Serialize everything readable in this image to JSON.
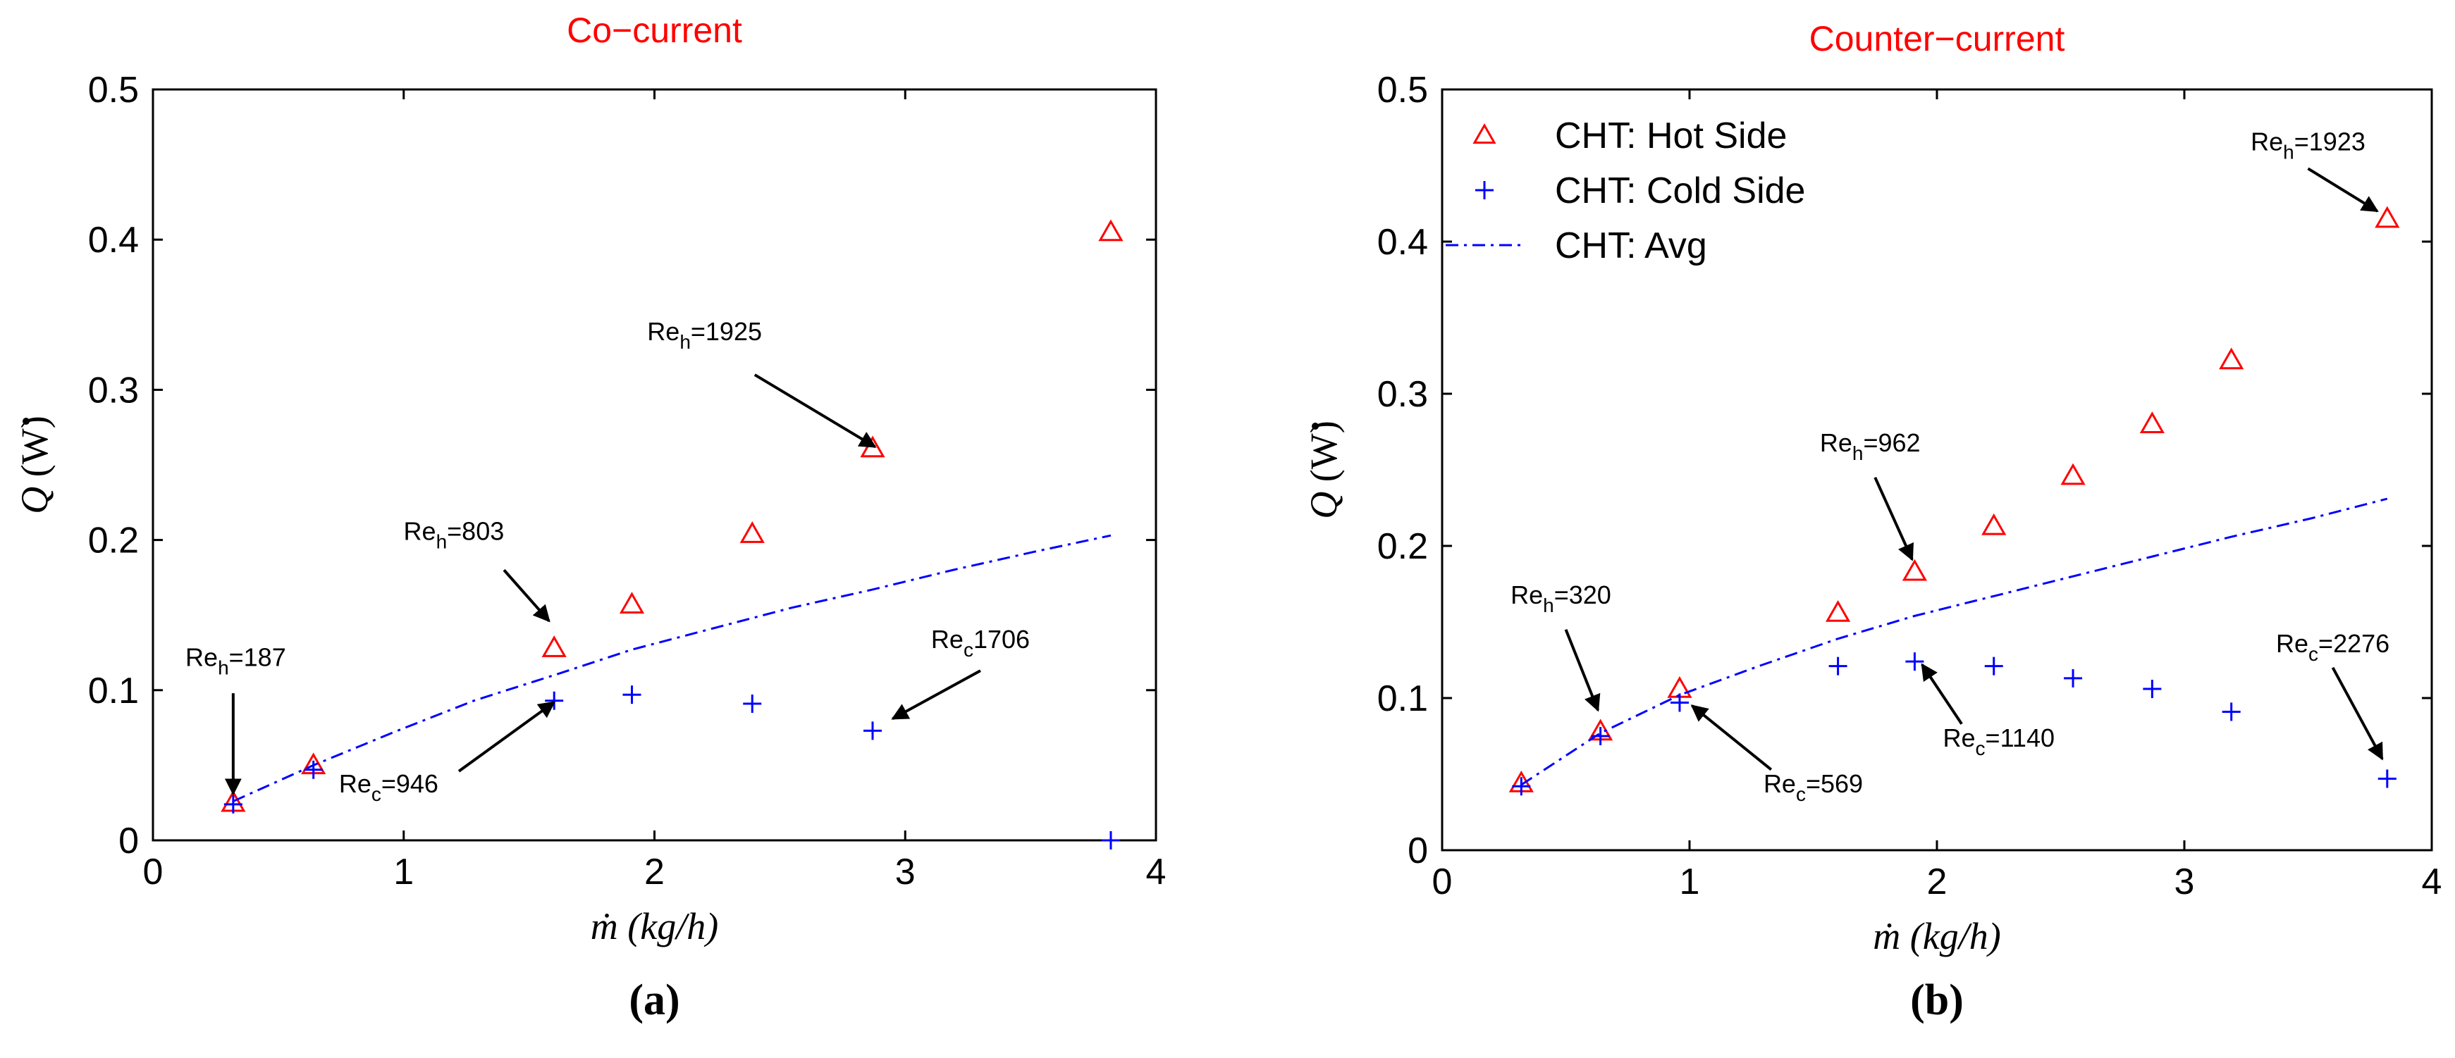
{
  "colors": {
    "hot": "#ff0000",
    "cold": "#0000ff",
    "avg": "#0000ff",
    "title": "#ff0000",
    "axis": "#000000",
    "arrow": "#000000"
  },
  "ylabel_parts": {
    "q": "Q",
    "unit": " (W)"
  },
  "xlabel_parts": {
    "m": "ṁ",
    "unit": " (kg/h)"
  },
  "chart_data": [
    {
      "type": "scatter",
      "title": "Co−current",
      "subcaption": "(a)",
      "xlabel": "ṁ (kg/h)",
      "ylabel": "Q̇ (W)",
      "xlim": [
        0,
        4
      ],
      "ylim": [
        0,
        0.5
      ],
      "xticks": [
        0,
        1,
        2,
        3,
        4
      ],
      "yticks": [
        0,
        0.1,
        0.2,
        0.3,
        0.4,
        0.5
      ],
      "ytick_labels": [
        "0",
        "0.1",
        "0.2",
        "0.3",
        "0.4",
        "0.5"
      ],
      "grid": false,
      "legend": null,
      "series": [
        {
          "name": "CHT: Hot Side",
          "marker": "triangle",
          "x": [
            0.32,
            0.64,
            1.6,
            1.91,
            2.39,
            2.87,
            3.82
          ],
          "y": [
            0.025,
            0.05,
            0.128,
            0.157,
            0.204,
            0.261,
            0.405
          ]
        },
        {
          "name": "CHT: Cold Side",
          "marker": "plus",
          "x": [
            0.32,
            0.64,
            1.6,
            1.91,
            2.39,
            2.87,
            3.82
          ],
          "y": [
            0.024,
            0.047,
            0.093,
            0.097,
            0.091,
            0.073,
            0.0
          ]
        },
        {
          "name": "CHT: Avg",
          "marker": "dashdot",
          "x": [
            0.32,
            0.64,
            0.96,
            1.28,
            1.6,
            1.91,
            2.23,
            2.55,
            2.87,
            3.19,
            3.51,
            3.82
          ],
          "y": [
            0.026,
            0.05,
            0.072,
            0.093,
            0.11,
            0.127,
            0.141,
            0.155,
            0.167,
            0.18,
            0.192,
            0.203
          ]
        }
      ],
      "annotations": [
        {
          "base": "Re",
          "sub": "h",
          "rest": "=1925",
          "tx": 2.2,
          "ty": 0.333,
          "ax": 2.88,
          "ay": 0.262,
          "sx": 2.4,
          "sy": 0.31
        },
        {
          "base": "Re",
          "sub": "h",
          "rest": "=803",
          "tx": 1.2,
          "ty": 0.2,
          "ax": 1.58,
          "ay": 0.146,
          "sx": 1.4,
          "sy": 0.18
        },
        {
          "base": "Re",
          "sub": "h",
          "rest": "=187",
          "tx": 0.33,
          "ty": 0.116,
          "ax": 0.32,
          "ay": 0.031,
          "sx": 0.32,
          "sy": 0.098
        },
        {
          "base": "Re",
          "sub": "c",
          "rest": "1706",
          "tx": 3.3,
          "ty": 0.128,
          "ax": 2.95,
          "ay": 0.081,
          "sx": 3.3,
          "sy": 0.113
        },
        {
          "base": "Re",
          "sub": "c",
          "rest": "=946",
          "tx": 0.94,
          "ty": 0.032,
          "ax": 1.6,
          "ay": 0.092,
          "sx": 1.22,
          "sy": 0.046
        }
      ]
    },
    {
      "type": "scatter",
      "title": "Counter−current",
      "subcaption": "(b)",
      "xlabel": "ṁ (kg/h)",
      "ylabel": "Q̇ (W)",
      "xlim": [
        0,
        4
      ],
      "ylim": [
        0,
        0.5
      ],
      "xticks": [
        0,
        1,
        2,
        3,
        4
      ],
      "yticks": [
        0,
        0.1,
        0.2,
        0.3,
        0.4,
        0.5
      ],
      "ytick_labels": [
        "0",
        "0.1",
        "0.2",
        "0.3",
        "0.4",
        "0.5"
      ],
      "grid": false,
      "legend": "top-left",
      "series": [
        {
          "name": "CHT: Hot Side",
          "marker": "triangle",
          "x": [
            0.32,
            0.64,
            0.96,
            1.6,
            1.91,
            2.23,
            2.55,
            2.87,
            3.19,
            3.82
          ],
          "y": [
            0.044,
            0.078,
            0.106,
            0.156,
            0.183,
            0.213,
            0.246,
            0.28,
            0.322,
            0.415
          ]
        },
        {
          "name": "CHT: Cold Side",
          "marker": "plus",
          "x": [
            0.32,
            0.64,
            0.96,
            1.6,
            1.91,
            2.23,
            2.55,
            2.87,
            3.19,
            3.82
          ],
          "y": [
            0.042,
            0.075,
            0.097,
            0.121,
            0.124,
            0.121,
            0.113,
            0.106,
            0.091,
            0.047
          ]
        },
        {
          "name": "CHT: Avg",
          "marker": "dashdot",
          "x": [
            0.32,
            0.64,
            0.96,
            1.28,
            1.6,
            1.91,
            2.23,
            2.55,
            2.87,
            3.19,
            3.51,
            3.82
          ],
          "y": [
            0.043,
            0.077,
            0.102,
            0.121,
            0.139,
            0.154,
            0.167,
            0.18,
            0.193,
            0.206,
            0.218,
            0.231
          ]
        }
      ],
      "annotations": [
        {
          "base": "Re",
          "sub": "h",
          "rest": "=1923",
          "tx": 3.5,
          "ty": 0.46,
          "ax": 3.78,
          "ay": 0.42,
          "sx": 3.5,
          "sy": 0.448
        },
        {
          "base": "Re",
          "sub": "h",
          "rest": "=962",
          "tx": 1.73,
          "ty": 0.262,
          "ax": 1.9,
          "ay": 0.191,
          "sx": 1.75,
          "sy": 0.245
        },
        {
          "base": "Re",
          "sub": "h",
          "rest": "=320",
          "tx": 0.48,
          "ty": 0.162,
          "ax": 0.63,
          "ay": 0.092,
          "sx": 0.5,
          "sy": 0.145
        },
        {
          "base": "Re",
          "sub": "c",
          "rest": "=569",
          "tx": 1.5,
          "ty": 0.038,
          "ax": 1.01,
          "ay": 0.095,
          "sx": 1.33,
          "sy": 0.053
        },
        {
          "base": "Re",
          "sub": "c",
          "rest": "=1140",
          "tx": 2.25,
          "ty": 0.068,
          "ax": 1.94,
          "ay": 0.122,
          "sx": 2.1,
          "sy": 0.083
        },
        {
          "base": "Re",
          "sub": "c",
          "rest": "=2276",
          "tx": 3.6,
          "ty": 0.13,
          "ax": 3.8,
          "ay": 0.06,
          "sx": 3.6,
          "sy": 0.12
        }
      ]
    }
  ]
}
